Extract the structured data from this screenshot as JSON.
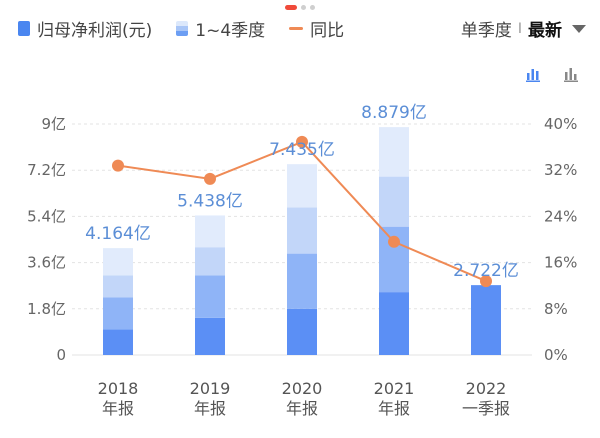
{
  "legend": {
    "profit": "归母净利润(元)",
    "quarters": "1~4季度",
    "yoy": "同比"
  },
  "selector": {
    "period": "单季度",
    "separator": "I",
    "latest": "最新"
  },
  "icons": [
    "bar-chart-icon",
    "column-chart-icon",
    "dropdown-caret-icon"
  ],
  "colors": {
    "q1": "#5b8ff5",
    "q2": "#8fb4f7",
    "q3": "#c2d6f9",
    "q4": "#e1ebfc",
    "line": "#ef8a55",
    "label": "#5b8ed6",
    "grid": "#e3e3e3",
    "active_page": "#f04a3a"
  },
  "chart_data": {
    "type": "bar",
    "categories": [
      [
        "2018",
        "年报"
      ],
      [
        "2019",
        "年报"
      ],
      [
        "2020",
        "年报"
      ],
      [
        "2021",
        "年报"
      ],
      [
        "2022",
        "一季报"
      ]
    ],
    "totals": [
      4.164,
      5.438,
      7.435,
      8.879,
      2.722
    ],
    "total_labels": [
      "4.164亿",
      "5.438亿",
      "7.435亿",
      "8.879亿",
      "2.722亿"
    ],
    "quarterly_cumulative": [
      [
        1.0,
        2.25,
        3.1,
        4.164
      ],
      [
        1.45,
        3.1,
        4.2,
        5.438
      ],
      [
        1.8,
        3.95,
        5.75,
        7.435
      ],
      [
        2.45,
        5.0,
        6.95,
        8.879
      ],
      [
        2.722
      ]
    ],
    "yoy_percent": [
      32.8,
      30.5,
      36.9,
      19.6,
      12.8
    ],
    "y_left": {
      "ticks": [
        0,
        1.8,
        3.6,
        5.4,
        7.2,
        9
      ],
      "labels": [
        "0",
        "1.8亿",
        "3.6亿",
        "5.4亿",
        "7.2亿",
        "9亿"
      ],
      "range": [
        0,
        9
      ]
    },
    "y_right": {
      "ticks": [
        0,
        8,
        16,
        24,
        32,
        40
      ],
      "labels": [
        "0%",
        "8%",
        "16%",
        "24%",
        "32%",
        "40%"
      ],
      "range": [
        0,
        40
      ]
    },
    "grid": true
  }
}
